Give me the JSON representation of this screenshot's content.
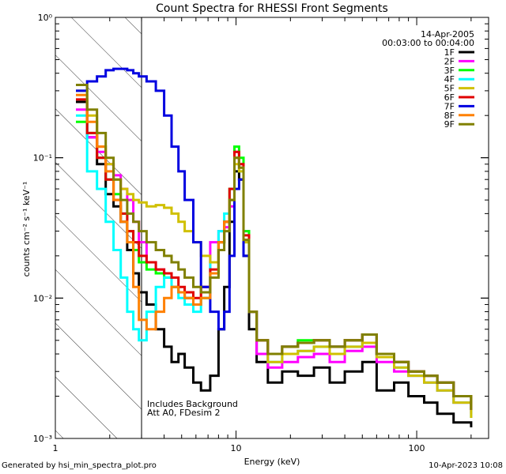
{
  "chart_data": {
    "type": "line",
    "title": "Count Spectra for RHESSI Front Segments",
    "xlabel": "Energy (keV)",
    "ylabel": "counts cm⁻² s⁻¹ keV⁻¹",
    "xscale": "log",
    "yscale": "log",
    "xlim": [
      1,
      250
    ],
    "ylim": [
      0.001,
      1
    ],
    "x_ticks": [
      {
        "value": 1,
        "label": "1"
      },
      {
        "value": 10,
        "label": "10"
      },
      {
        "value": 100,
        "label": "100"
      }
    ],
    "y_ticks": [
      {
        "value": 0.001,
        "label": "10⁻³"
      },
      {
        "value": 0.01,
        "label": "10⁻²"
      },
      {
        "value": 0.1,
        "label": "10⁻¹"
      },
      {
        "value": 1,
        "label": "10⁰"
      }
    ],
    "grid": false,
    "legend_position": "top-right",
    "date": "14-Apr-2005",
    "time_range": "00:03:00 to 00:04:00",
    "shaded_region": {
      "from": 1,
      "to": 3,
      "pattern": "hatched"
    },
    "annotation_lines": [
      "Includes Background",
      "Att A0, FDesim 2"
    ],
    "series": [
      {
        "name": "1F",
        "color": "#000000",
        "x": [
          1.3,
          1.5,
          1.7,
          1.9,
          2.1,
          2.3,
          2.5,
          2.7,
          2.9,
          3.2,
          3.6,
          4.0,
          4.4,
          4.8,
          5.2,
          5.8,
          6.4,
          7.2,
          8.0,
          8.6,
          9.2,
          9.8,
          10.4,
          11.0,
          11.8,
          13,
          15,
          18,
          22,
          27,
          33,
          40,
          50,
          60,
          75,
          90,
          110,
          130,
          160,
          200
        ],
        "y": [
          0.25,
          0.14,
          0.09,
          0.055,
          0.045,
          0.035,
          0.022,
          0.015,
          0.011,
          0.009,
          0.006,
          0.0045,
          0.0035,
          0.004,
          0.0032,
          0.0025,
          0.0022,
          0.0028,
          0.006,
          0.012,
          0.035,
          0.08,
          0.07,
          0.02,
          0.006,
          0.0035,
          0.0025,
          0.003,
          0.0028,
          0.0032,
          0.0025,
          0.003,
          0.0035,
          0.0022,
          0.0025,
          0.002,
          0.0018,
          0.0015,
          0.0013,
          0.0012
        ]
      },
      {
        "name": "2F",
        "color": "#ff00ff",
        "x": [
          1.3,
          1.5,
          1.7,
          1.9,
          2.1,
          2.3,
          2.5,
          2.7,
          2.9,
          3.2,
          3.6,
          4.0,
          4.4,
          4.8,
          5.2,
          5.8,
          6.4,
          7.2,
          8.0,
          8.6,
          9.2,
          9.8,
          10.4,
          11.0,
          11.8,
          13,
          15,
          18,
          22,
          27,
          33,
          40,
          50,
          60,
          75,
          90,
          110,
          130,
          160,
          200
        ],
        "y": [
          0.22,
          0.14,
          0.11,
          0.09,
          0.075,
          0.06,
          0.05,
          0.035,
          0.025,
          0.018,
          0.016,
          0.015,
          0.012,
          0.011,
          0.01,
          0.009,
          0.012,
          0.025,
          0.03,
          0.032,
          0.045,
          0.11,
          0.09,
          0.03,
          0.008,
          0.004,
          0.0032,
          0.0035,
          0.0038,
          0.004,
          0.0035,
          0.0042,
          0.0045,
          0.0035,
          0.003,
          0.0028,
          0.0025,
          0.0022,
          0.0018,
          0.0015
        ]
      },
      {
        "name": "3F",
        "color": "#00ff00",
        "x": [
          1.3,
          1.5,
          1.7,
          1.9,
          2.1,
          2.3,
          2.5,
          2.7,
          2.9,
          3.2,
          3.6,
          4.0,
          4.4,
          4.8,
          5.2,
          5.8,
          6.4,
          7.2,
          8.0,
          8.6,
          9.2,
          9.8,
          10.4,
          11.0,
          11.8,
          13,
          15,
          18,
          22,
          27,
          33,
          40,
          50,
          60,
          75,
          90,
          110,
          130,
          160,
          200
        ],
        "y": [
          0.18,
          0.15,
          0.1,
          0.07,
          0.055,
          0.04,
          0.03,
          0.022,
          0.018,
          0.016,
          0.015,
          0.014,
          0.012,
          0.011,
          0.01,
          0.009,
          0.01,
          0.015,
          0.025,
          0.035,
          0.06,
          0.12,
          0.1,
          0.03,
          0.008,
          0.005,
          0.004,
          0.0045,
          0.005,
          0.005,
          0.0045,
          0.005,
          0.0055,
          0.004,
          0.0035,
          0.003,
          0.0028,
          0.0025,
          0.002,
          0.0016
        ]
      },
      {
        "name": "4F",
        "color": "#00ffff",
        "x": [
          1.3,
          1.5,
          1.7,
          1.9,
          2.1,
          2.3,
          2.5,
          2.7,
          2.9,
          3.2,
          3.6,
          4.0,
          4.4,
          4.8,
          5.2,
          5.8,
          6.4,
          7.2,
          8.0,
          8.6,
          9.2,
          9.8,
          10.4,
          11.0,
          11.8,
          13,
          15,
          18,
          22,
          27,
          33,
          40,
          50,
          60,
          75,
          90,
          110,
          130,
          160,
          200
        ],
        "y": [
          0.2,
          0.08,
          0.06,
          0.035,
          0.022,
          0.014,
          0.008,
          0.006,
          0.005,
          0.008,
          0.012,
          0.014,
          0.012,
          0.01,
          0.009,
          0.008,
          0.01,
          0.018,
          0.03,
          0.04,
          0.05,
          0.1,
          0.08,
          0.025,
          0.008,
          0.005,
          0.0035,
          0.004,
          0.0042,
          0.0045,
          0.004,
          0.0045,
          0.0048,
          0.0038,
          0.0032,
          0.0028,
          0.0025,
          0.0022,
          0.0018,
          0.0014
        ]
      },
      {
        "name": "5F",
        "color": "#d0c000",
        "x": [
          1.3,
          1.5,
          1.7,
          1.9,
          2.1,
          2.3,
          2.5,
          2.7,
          2.9,
          3.2,
          3.6,
          4.0,
          4.4,
          4.8,
          5.2,
          5.8,
          6.4,
          7.2,
          8.0,
          8.6,
          9.2,
          9.8,
          10.4,
          11.0,
          11.8,
          13,
          15,
          18,
          22,
          27,
          33,
          40,
          50,
          60,
          75,
          90,
          110,
          130,
          160,
          200
        ],
        "y": [
          0.3,
          0.2,
          0.12,
          0.09,
          0.07,
          0.06,
          0.055,
          0.05,
          0.048,
          0.045,
          0.046,
          0.044,
          0.04,
          0.035,
          0.03,
          0.025,
          0.02,
          0.018,
          0.025,
          0.035,
          0.05,
          0.09,
          0.08,
          0.025,
          0.008,
          0.005,
          0.0035,
          0.004,
          0.0042,
          0.0045,
          0.004,
          0.0045,
          0.0048,
          0.0038,
          0.0032,
          0.0028,
          0.0025,
          0.0022,
          0.0018,
          0.0014
        ]
      },
      {
        "name": "6F",
        "color": "#e00000",
        "x": [
          1.3,
          1.5,
          1.7,
          1.9,
          2.1,
          2.3,
          2.5,
          2.7,
          2.9,
          3.2,
          3.6,
          4.0,
          4.4,
          4.8,
          5.2,
          5.8,
          6.4,
          7.2,
          8.0,
          8.6,
          9.2,
          9.8,
          10.4,
          11.0,
          11.8,
          13,
          15,
          18,
          22,
          27,
          33,
          40,
          50,
          60,
          75,
          90,
          110,
          130,
          160,
          200
        ],
        "y": [
          0.26,
          0.15,
          0.1,
          0.07,
          0.05,
          0.04,
          0.03,
          0.025,
          0.02,
          0.018,
          0.016,
          0.015,
          0.014,
          0.012,
          0.011,
          0.01,
          0.012,
          0.016,
          0.025,
          0.035,
          0.06,
          0.11,
          0.09,
          0.028,
          0.008,
          0.005,
          0.004,
          0.0045,
          0.0048,
          0.005,
          0.0045,
          0.005,
          0.0055,
          0.004,
          0.0035,
          0.003,
          0.0028,
          0.0025,
          0.002,
          0.0016
        ]
      },
      {
        "name": "7F",
        "color": "#0000e0",
        "x": [
          1.3,
          1.5,
          1.7,
          1.9,
          2.1,
          2.3,
          2.5,
          2.7,
          2.9,
          3.2,
          3.6,
          4.0,
          4.4,
          4.8,
          5.2,
          5.8,
          6.4,
          7.2,
          8.0,
          8.6,
          9.2,
          9.8,
          10.4,
          11.0,
          11.8,
          13,
          15,
          18,
          22,
          27,
          33,
          40,
          50,
          60,
          75,
          90,
          110,
          130,
          160,
          200
        ],
        "y": [
          0.3,
          0.35,
          0.38,
          0.42,
          0.43,
          0.43,
          0.42,
          0.4,
          0.38,
          0.35,
          0.3,
          0.2,
          0.12,
          0.08,
          0.05,
          0.025,
          0.012,
          0.008,
          0.006,
          0.008,
          0.02,
          0.06,
          0.07,
          0.02,
          0.008,
          0.005,
          0.004,
          0.0045,
          0.0048,
          0.005,
          0.0045,
          0.005,
          0.0055,
          0.004,
          0.0035,
          0.003,
          0.0028,
          0.0025,
          0.002,
          0.0016
        ]
      },
      {
        "name": "8F",
        "color": "#ff8000",
        "x": [
          1.3,
          1.5,
          1.7,
          1.9,
          2.1,
          2.3,
          2.5,
          2.7,
          2.9,
          3.2,
          3.6,
          4.0,
          4.4,
          4.8,
          5.2,
          5.8,
          6.4,
          7.2,
          8.0,
          8.6,
          9.2,
          9.8,
          10.4,
          11.0,
          11.8,
          13,
          15,
          18,
          22,
          27,
          33,
          40,
          50,
          60,
          75,
          90,
          110,
          130,
          160,
          200
        ],
        "y": [
          0.28,
          0.18,
          0.12,
          0.08,
          0.05,
          0.035,
          0.025,
          0.012,
          0.007,
          0.006,
          0.008,
          0.01,
          0.012,
          0.011,
          0.01,
          0.009,
          0.01,
          0.015,
          0.025,
          0.035,
          0.05,
          0.1,
          0.085,
          0.026,
          0.008,
          0.005,
          0.004,
          0.0045,
          0.0048,
          0.005,
          0.0045,
          0.005,
          0.0055,
          0.004,
          0.0035,
          0.003,
          0.0028,
          0.0025,
          0.002,
          0.0016
        ]
      },
      {
        "name": "9F",
        "color": "#808000",
        "x": [
          1.3,
          1.5,
          1.7,
          1.9,
          2.1,
          2.3,
          2.5,
          2.7,
          2.9,
          3.2,
          3.6,
          4.0,
          4.4,
          4.8,
          5.2,
          5.8,
          6.4,
          7.2,
          8.0,
          8.6,
          9.2,
          9.8,
          10.4,
          11.0,
          11.8,
          13,
          15,
          18,
          22,
          27,
          33,
          40,
          50,
          60,
          75,
          90,
          110,
          130,
          160,
          200
        ],
        "y": [
          0.33,
          0.22,
          0.15,
          0.1,
          0.07,
          0.05,
          0.04,
          0.035,
          0.03,
          0.025,
          0.022,
          0.02,
          0.018,
          0.016,
          0.014,
          0.012,
          0.011,
          0.014,
          0.022,
          0.03,
          0.05,
          0.1,
          0.085,
          0.026,
          0.008,
          0.005,
          0.004,
          0.0045,
          0.0048,
          0.005,
          0.0045,
          0.005,
          0.0055,
          0.004,
          0.0035,
          0.003,
          0.0028,
          0.0025,
          0.002,
          0.0016
        ]
      }
    ]
  },
  "footer": {
    "generated_by": "Generated by hsi_min_spectra_plot.pro",
    "timestamp": "10-Apr-2023 10:08"
  }
}
